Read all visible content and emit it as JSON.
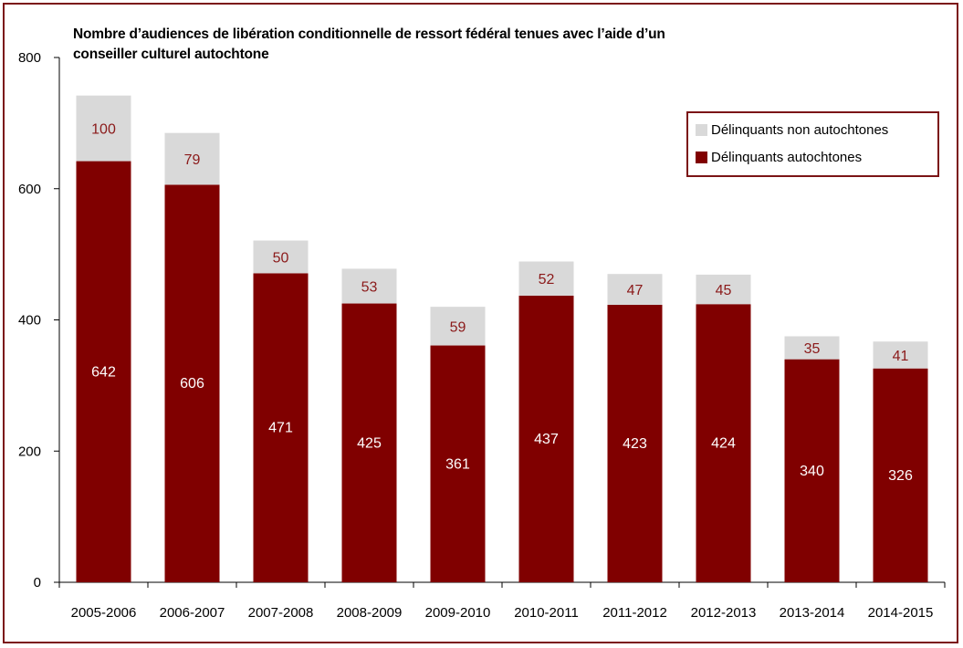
{
  "chart_data": {
    "type": "bar",
    "stacked": true,
    "title": "Nombre d’audiences de libération conditionnelle de ressort fédéral tenues avec l’aide d’un conseiller culturel autochtone",
    "title_lines": [
      "Nombre d’audiences de libération conditionnelle de ressort fédéral tenues avec l’aide d’un",
      "conseiller culturel autochtone"
    ],
    "categories": [
      "2005-2006",
      "2006-2007",
      "2007-2008",
      "2008-2009",
      "2009-2010",
      "2010-2011",
      "2011-2012",
      "2012-2013",
      "2013-2014",
      "2014-2015"
    ],
    "series": [
      {
        "name": "Délinquants autochtones",
        "values": [
          642,
          606,
          471,
          425,
          361,
          437,
          423,
          424,
          340,
          326
        ],
        "color": "#800000",
        "label_color": "#ffffff"
      },
      {
        "name": "Délinquants non autochtones",
        "values": [
          100,
          79,
          50,
          53,
          59,
          52,
          47,
          45,
          35,
          41
        ],
        "color": "#d9d9d9",
        "label_color": "#8b1a1a"
      }
    ],
    "ylim": [
      0,
      800
    ],
    "yticks": [
      0,
      200,
      400,
      600,
      800
    ],
    "legend": {
      "position": "top-right",
      "order": [
        "Délinquants non autochtones",
        "Délinquants autochtones"
      ]
    },
    "grid": false
  }
}
